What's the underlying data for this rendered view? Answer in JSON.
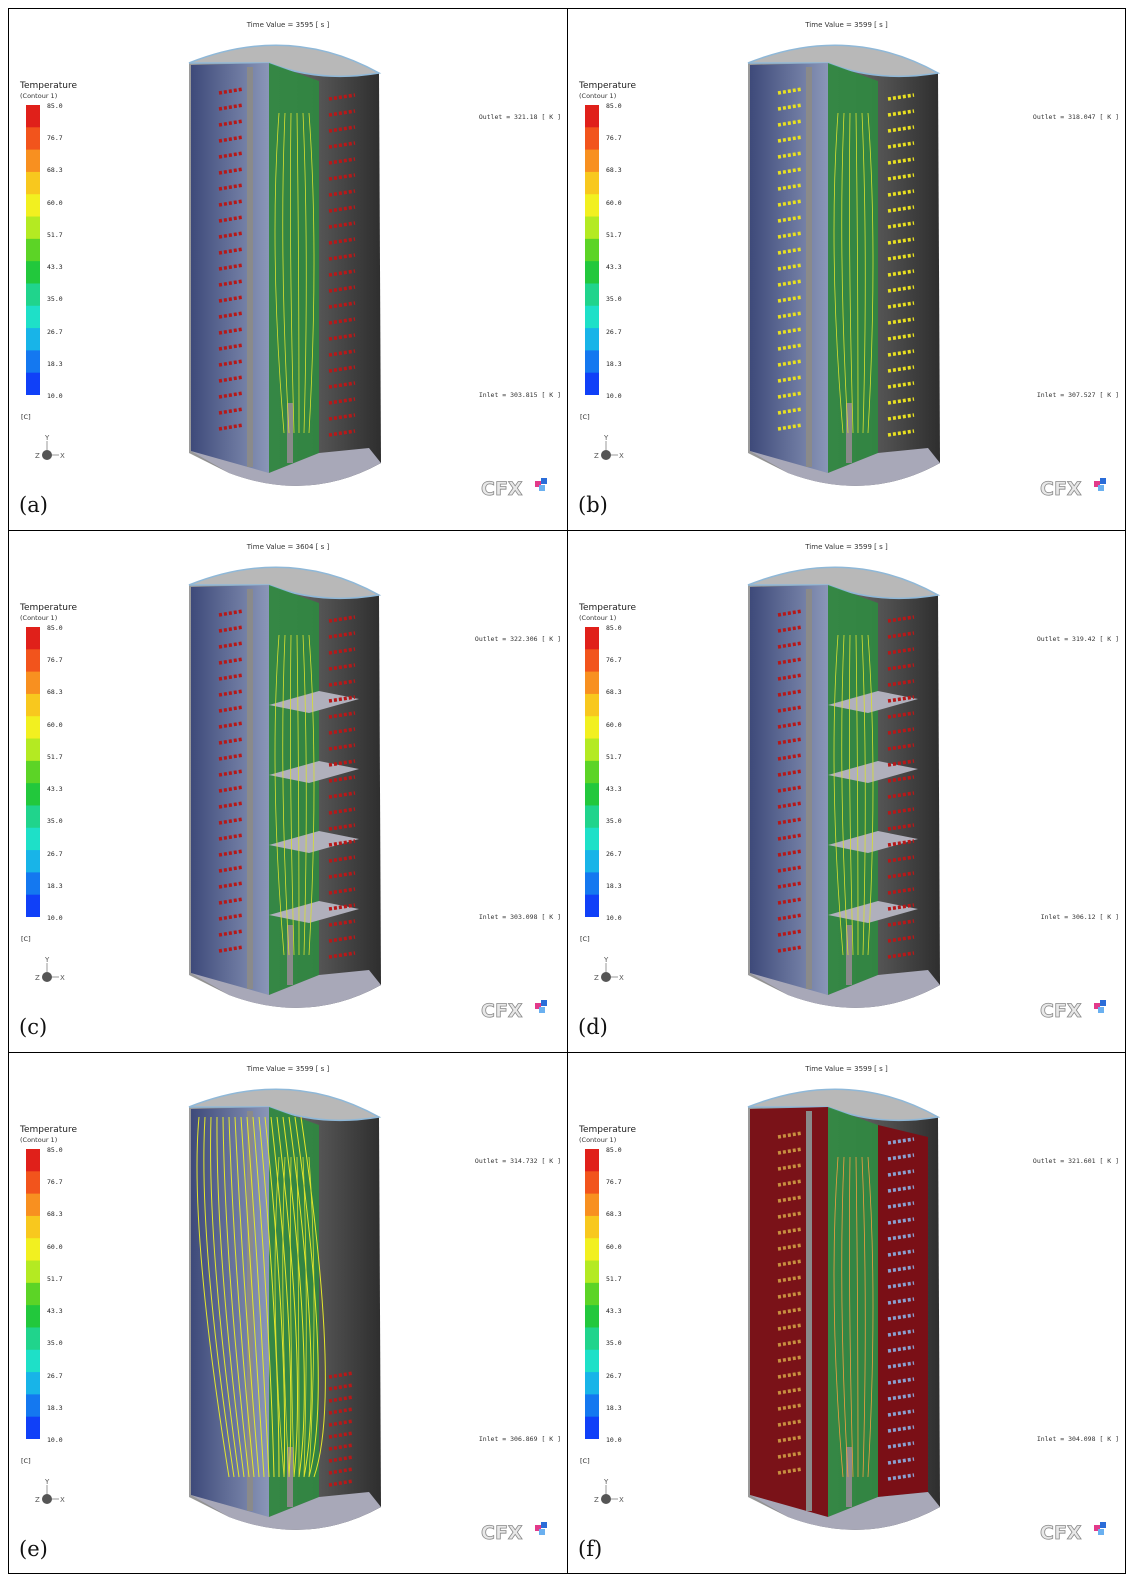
{
  "legend": {
    "title": "Temperature",
    "subtitle": "(Contour 1)",
    "unit": "[C]",
    "ticks": [
      "85.0",
      "76.7",
      "68.3",
      "60.0",
      "51.7",
      "43.3",
      "35.0",
      "26.7",
      "18.3",
      "10.0"
    ],
    "band_colors": [
      "#e0201a",
      "#f2541c",
      "#f89020",
      "#f8c81e",
      "#f2f020",
      "#b4ea22",
      "#5cd426",
      "#22c83c",
      "#20d48c",
      "#1ee0c8",
      "#18b4e8",
      "#1478f0",
      "#1040f8"
    ]
  },
  "triad": {
    "x_label": "X",
    "y_label": "Y",
    "z_label": "Z"
  },
  "logo_text": "CFX",
  "panels": [
    {
      "label": "(a)",
      "time": "Time Value = 3595 [ s ]",
      "outlet": "Outlet = 321.18 [ K ]",
      "inlet": "Inlet = 303.815 [ K ]",
      "variant": "coils",
      "baffles": false
    },
    {
      "label": "(b)",
      "time": "Time Value = 3599 [ s ]",
      "outlet": "Outlet = 318.047 [ K ]",
      "inlet": "Inlet = 307.527 [ K ]",
      "variant": "coils-yellow",
      "baffles": false
    },
    {
      "label": "(c)",
      "time": "Time Value = 3604 [ s ]",
      "outlet": "Outlet = 322.306 [ K ]",
      "inlet": "Inlet = 303.098 [ K ]",
      "variant": "coils",
      "baffles": true
    },
    {
      "label": "(d)",
      "time": "Time Value = 3599 [ s ]",
      "outlet": "Outlet = 319.42 [ K ]",
      "inlet": "Inlet = 306.12 [ K ]",
      "variant": "coils",
      "baffles": true
    },
    {
      "label": "(e)",
      "time": "Time Value = 3599 [ s ]",
      "outlet": "Outlet = 314.732 [ K ]",
      "inlet": "Inlet = 306.869 [ K ]",
      "variant": "streams",
      "baffles": false
    },
    {
      "label": "(f)",
      "time": "Time Value = 3599 [ s ]",
      "outlet": "Outlet = 321.601 [ K ]",
      "inlet": "Inlet = 304.098 [ K ]",
      "variant": "red-wall",
      "baffles": false
    }
  ]
}
